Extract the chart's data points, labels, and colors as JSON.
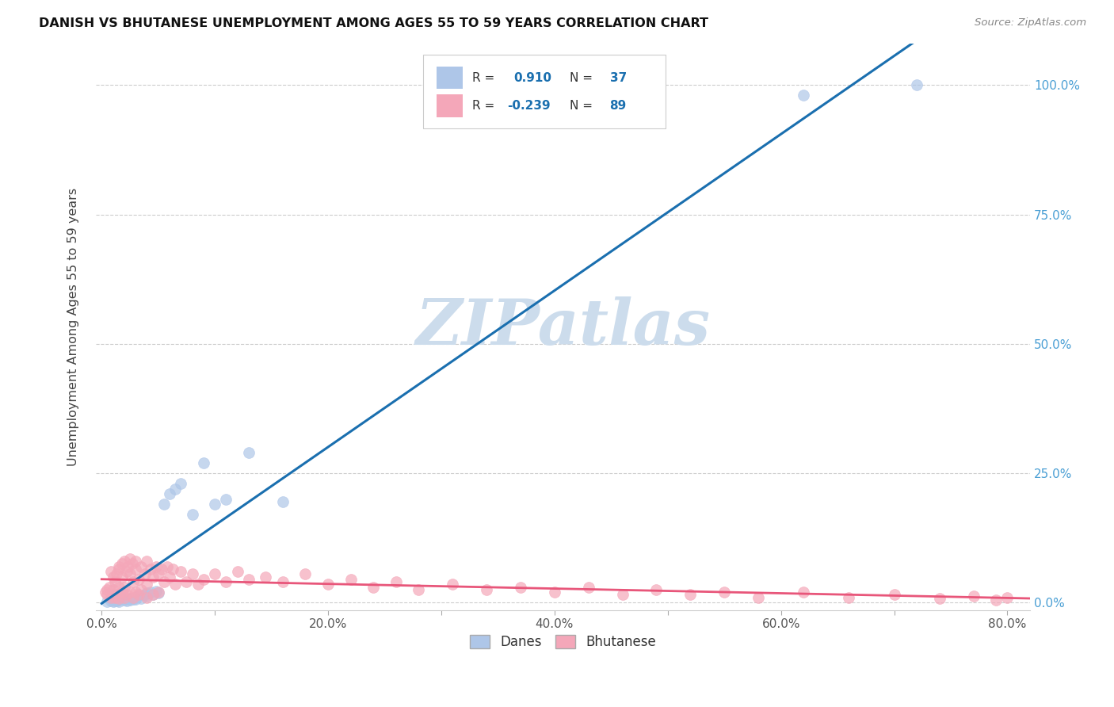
{
  "title": "DANISH VS BHUTANESE UNEMPLOYMENT AMONG AGES 55 TO 59 YEARS CORRELATION CHART",
  "source": "Source: ZipAtlas.com",
  "ylabel": "Unemployment Among Ages 55 to 59 years",
  "xlabel_ticks": [
    "0.0%",
    "",
    "20.0%",
    "",
    "40.0%",
    "",
    "60.0%",
    "",
    "80.0%"
  ],
  "xlabel_vals": [
    0.0,
    0.1,
    0.2,
    0.3,
    0.4,
    0.5,
    0.6,
    0.7,
    0.8
  ],
  "ylabel_ticks_right": [
    "0.0%",
    "25.0%",
    "50.0%",
    "75.0%",
    "100.0%"
  ],
  "ylabel_vals_right": [
    0.0,
    0.25,
    0.5,
    0.75,
    1.0
  ],
  "xlim": [
    -0.005,
    0.82
  ],
  "ylim": [
    -0.015,
    1.08
  ],
  "danes_R": 0.91,
  "danes_N": 37,
  "bhutanese_R": -0.239,
  "bhutanese_N": 89,
  "danes_color": "#aec6e8",
  "bhutanese_color": "#f4a7b9",
  "danes_line_color": "#1a6faf",
  "bhutanese_line_color": "#e8567a",
  "legend_danes_label": "Danes",
  "legend_bhutanese_label": "Bhutanese",
  "watermark": "ZIPatlas",
  "watermark_color": "#ccdcec",
  "danes_scatter_x": [
    0.005,
    0.008,
    0.01,
    0.012,
    0.013,
    0.015,
    0.015,
    0.018,
    0.02,
    0.022,
    0.022,
    0.025,
    0.025,
    0.028,
    0.03,
    0.03,
    0.033,
    0.035,
    0.038,
    0.04,
    0.04,
    0.043,
    0.045,
    0.048,
    0.05,
    0.055,
    0.06,
    0.065,
    0.07,
    0.08,
    0.09,
    0.1,
    0.11,
    0.13,
    0.16,
    0.62,
    0.72
  ],
  "danes_scatter_y": [
    0.002,
    0.003,
    0.002,
    0.004,
    0.003,
    0.005,
    0.002,
    0.006,
    0.005,
    0.007,
    0.003,
    0.008,
    0.005,
    0.007,
    0.01,
    0.006,
    0.012,
    0.008,
    0.015,
    0.012,
    0.018,
    0.02,
    0.015,
    0.022,
    0.018,
    0.19,
    0.21,
    0.22,
    0.23,
    0.17,
    0.27,
    0.19,
    0.2,
    0.29,
    0.195,
    0.98,
    1.0
  ],
  "bhutanese_scatter_x": [
    0.003,
    0.005,
    0.005,
    0.007,
    0.008,
    0.008,
    0.01,
    0.01,
    0.01,
    0.012,
    0.012,
    0.013,
    0.013,
    0.015,
    0.015,
    0.015,
    0.015,
    0.018,
    0.018,
    0.018,
    0.02,
    0.02,
    0.02,
    0.022,
    0.022,
    0.023,
    0.025,
    0.025,
    0.025,
    0.027,
    0.028,
    0.028,
    0.03,
    0.03,
    0.03,
    0.033,
    0.033,
    0.035,
    0.035,
    0.038,
    0.04,
    0.04,
    0.04,
    0.043,
    0.045,
    0.045,
    0.048,
    0.05,
    0.05,
    0.053,
    0.055,
    0.058,
    0.06,
    0.063,
    0.065,
    0.07,
    0.075,
    0.08,
    0.085,
    0.09,
    0.1,
    0.11,
    0.12,
    0.13,
    0.145,
    0.16,
    0.18,
    0.2,
    0.22,
    0.24,
    0.26,
    0.28,
    0.31,
    0.34,
    0.37,
    0.4,
    0.43,
    0.46,
    0.49,
    0.52,
    0.55,
    0.58,
    0.62,
    0.66,
    0.7,
    0.74,
    0.77,
    0.79,
    0.8
  ],
  "bhutanese_scatter_y": [
    0.02,
    0.015,
    0.025,
    0.03,
    0.06,
    0.01,
    0.05,
    0.015,
    0.025,
    0.04,
    0.01,
    0.055,
    0.015,
    0.065,
    0.008,
    0.03,
    0.07,
    0.075,
    0.02,
    0.05,
    0.08,
    0.03,
    0.01,
    0.06,
    0.015,
    0.07,
    0.085,
    0.02,
    0.055,
    0.075,
    0.04,
    0.01,
    0.065,
    0.02,
    0.08,
    0.045,
    0.015,
    0.07,
    0.025,
    0.055,
    0.08,
    0.035,
    0.01,
    0.065,
    0.05,
    0.015,
    0.07,
    0.055,
    0.02,
    0.065,
    0.04,
    0.07,
    0.05,
    0.065,
    0.035,
    0.06,
    0.04,
    0.055,
    0.035,
    0.045,
    0.055,
    0.04,
    0.06,
    0.045,
    0.05,
    0.04,
    0.055,
    0.035,
    0.045,
    0.03,
    0.04,
    0.025,
    0.035,
    0.025,
    0.03,
    0.02,
    0.03,
    0.015,
    0.025,
    0.015,
    0.02,
    0.01,
    0.02,
    0.01,
    0.015,
    0.008,
    0.012,
    0.005,
    0.01
  ]
}
